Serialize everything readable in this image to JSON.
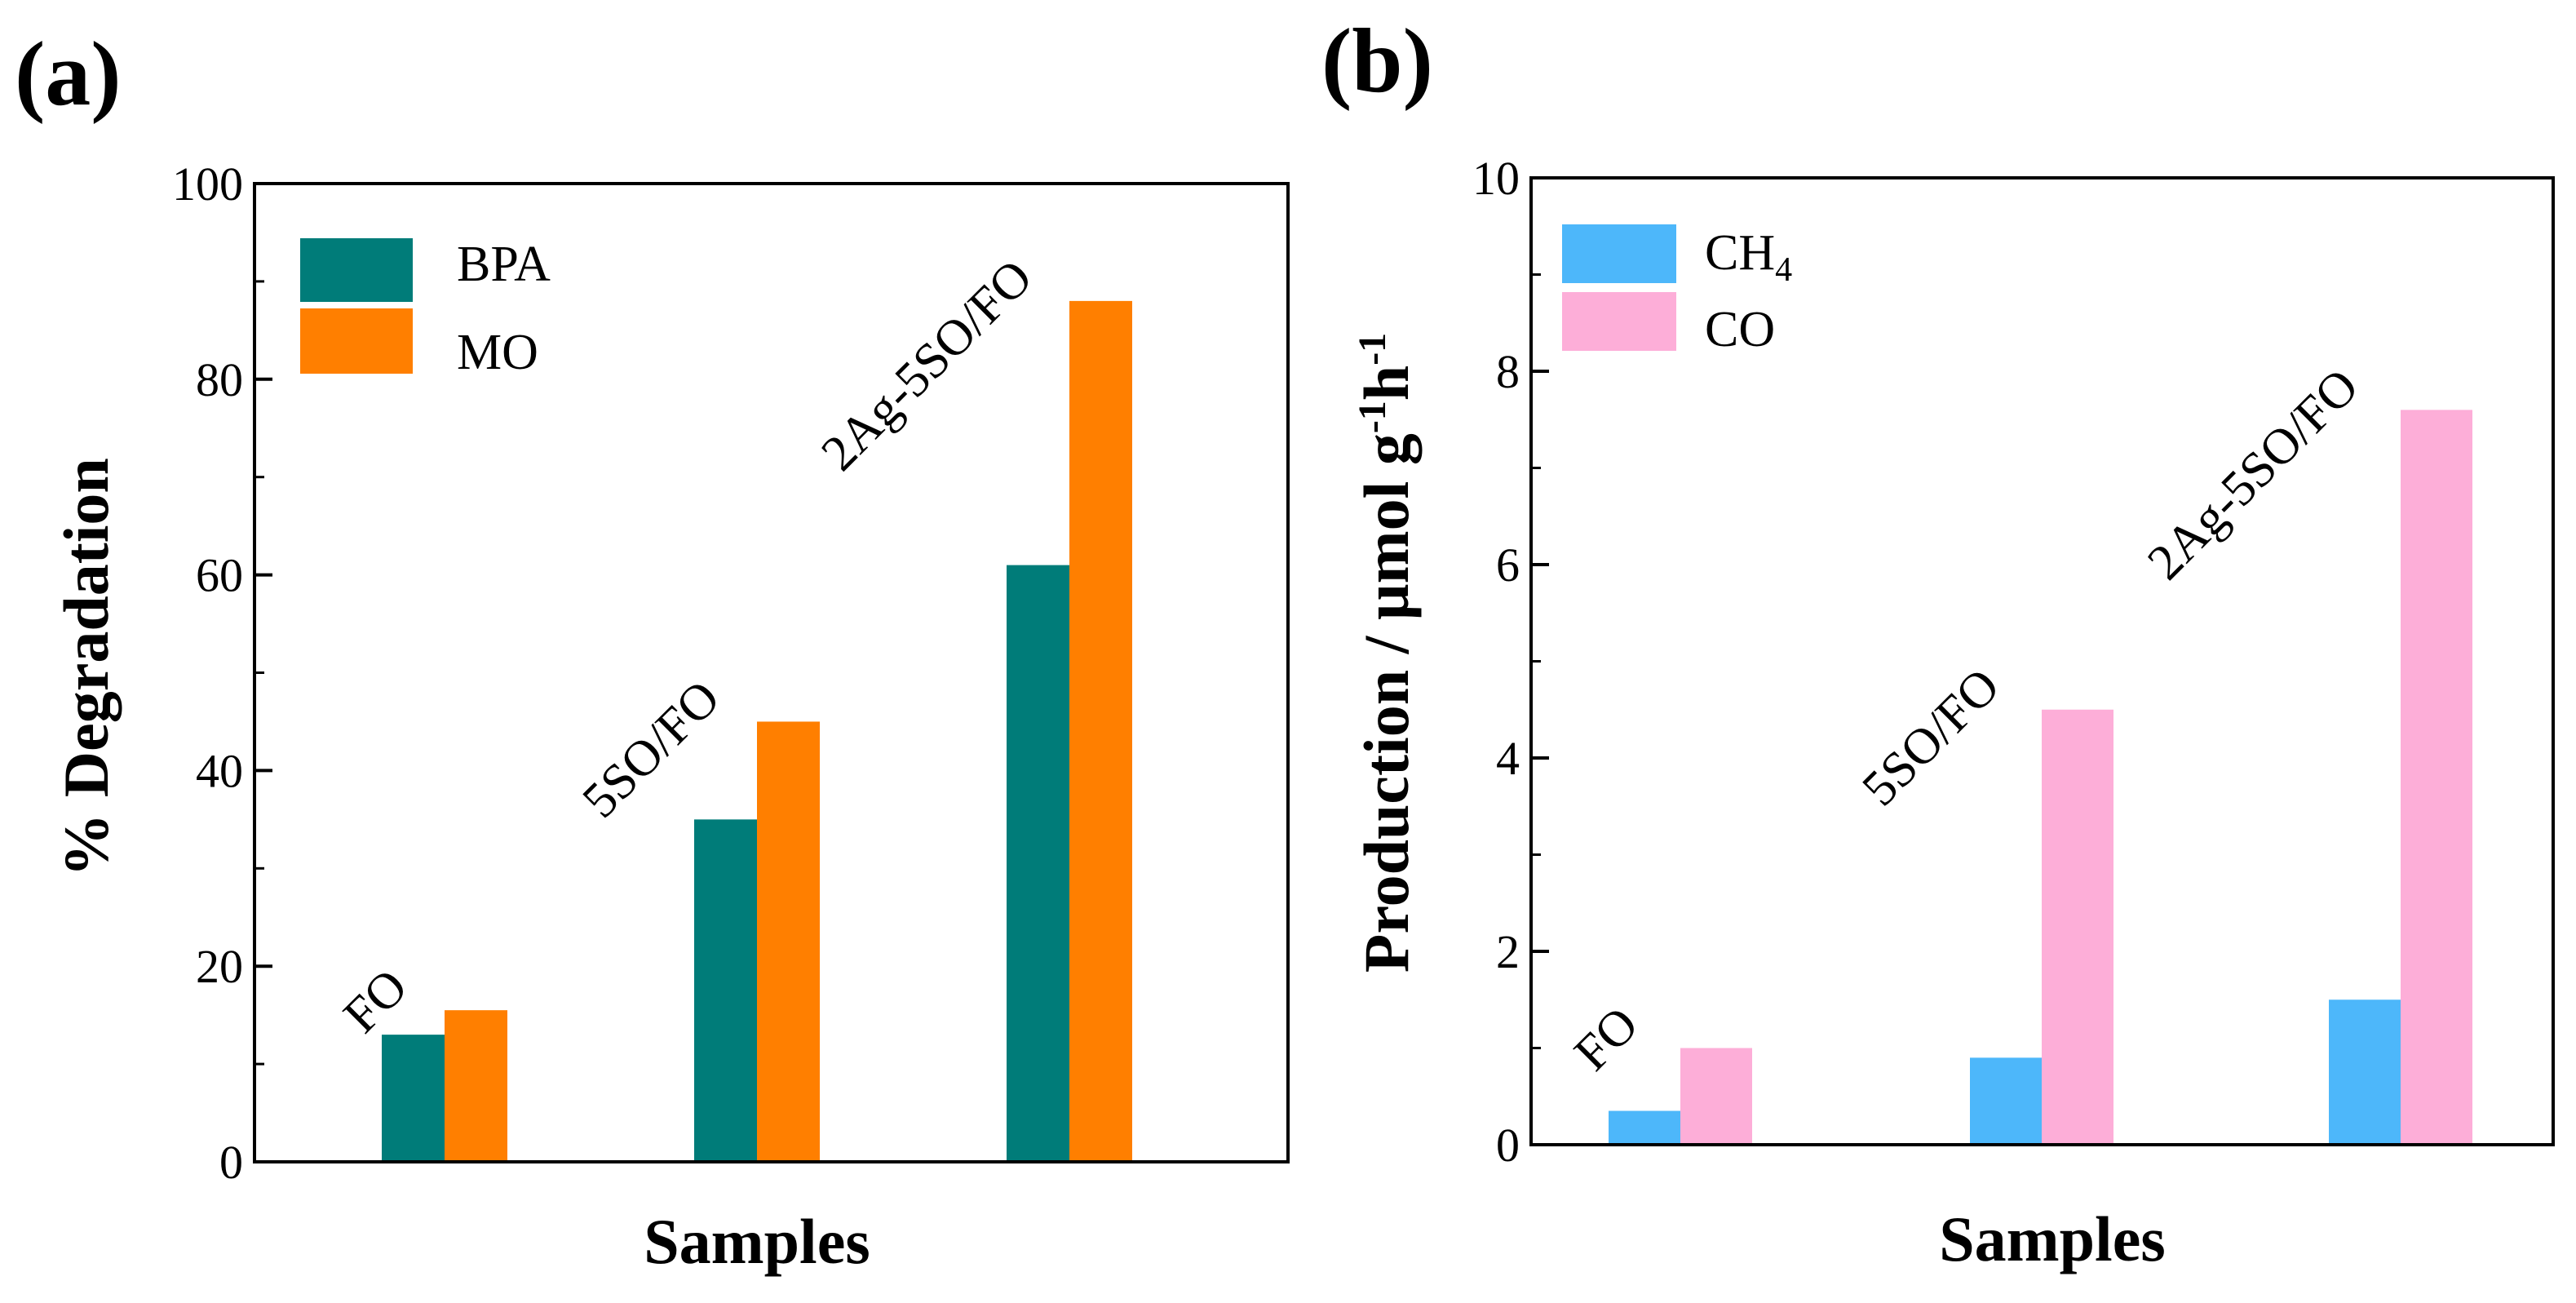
{
  "colors": {
    "bpa": "#007c79",
    "mo": "#ff7f00",
    "ch4": "#4db7fa",
    "co": "#fdaed8",
    "axis": "#000000"
  },
  "chart_data": [
    {
      "type": "bar",
      "panel_label": "(a)",
      "xlabel": "Samples",
      "ylabel": "% Degradation",
      "ylim": [
        0,
        100
      ],
      "yticks": [
        0,
        20,
        40,
        60,
        80,
        100
      ],
      "ytick_labels": [
        "0",
        "20",
        "40",
        "60",
        "80",
        "100"
      ],
      "categories": [
        "FO",
        "5SO/FO",
        "2Ag-5SO/FO"
      ],
      "series": [
        {
          "name": "BPA",
          "values": [
            13,
            35,
            61
          ]
        },
        {
          "name": "MO",
          "values": [
            15.5,
            45,
            88
          ]
        }
      ],
      "legend_position": "top-left"
    },
    {
      "type": "bar",
      "panel_label": "(b)",
      "xlabel": "Samples",
      "ylabel_main": "Production / µmol g",
      "ylabel_sup1": "-1",
      "ylabel_mid": "h",
      "ylabel_sup2": "-1",
      "ylim": [
        0,
        10
      ],
      "yticks": [
        0,
        2,
        4,
        6,
        8,
        10
      ],
      "ytick_labels": [
        "0",
        "2",
        "4",
        "6",
        "8",
        "10"
      ],
      "categories": [
        "FO",
        "5SO/FO",
        "2Ag-5SO/FO"
      ],
      "series": [
        {
          "name": "CH4",
          "name_main": "CH",
          "name_sub": "4",
          "values": [
            0.35,
            0.9,
            1.5
          ]
        },
        {
          "name": "CO",
          "values": [
            1.0,
            4.5,
            7.6
          ]
        }
      ],
      "legend_position": "top-left"
    }
  ]
}
